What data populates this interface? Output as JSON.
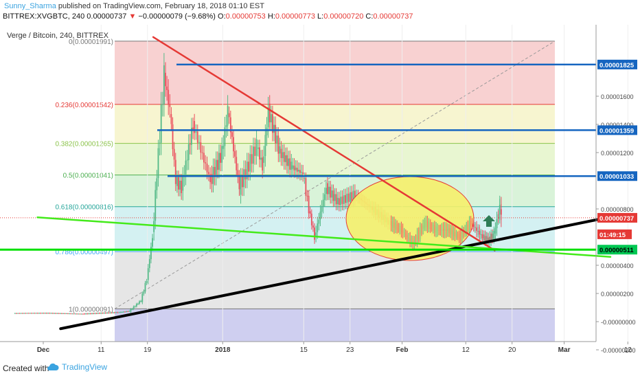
{
  "header": {
    "author": "Sunny_Sharma",
    "published": "published on TradingView.com, February 18, 2018 01:10 EST",
    "symbol": "BITTREX:XVGBTC, 240",
    "last": "0.00000737",
    "change": "−0.00000079 (−9.68%)",
    "o_label": "O:",
    "o_value": "0.00000753",
    "h_label": "H:",
    "h_value": "0.00000773",
    "l_label": "L:",
    "l_value": "0.00000720",
    "c_label": "C:",
    "c_value": "0.00000737"
  },
  "footer": {
    "created": "Created with",
    "brand": "TradingView"
  },
  "chart_data": {
    "type": "candlestick",
    "title": "Verge / Bitcoin, 240, BITTREX",
    "x_ticks": [
      "Dec",
      "11",
      "19",
      "2018",
      "15",
      "23",
      "Feb",
      "12",
      "20",
      "Mar",
      "12"
    ],
    "y_ticks": [
      "0.00001600",
      "0.00001400",
      "0.00001200",
      "0.00000800",
      "0.00000400",
      "0.00000200",
      "-0.00000000",
      "-0.00000200"
    ],
    "ylim": [
      -2.5e-06,
      2.1e-05
    ],
    "fib_levels": [
      {
        "ratio": "0",
        "value": 1.991e-05,
        "label": "0(0.00001991)",
        "color": "#777777"
      },
      {
        "ratio": "0.236",
        "value": 1.542e-05,
        "label": "0.236(0.00001542)",
        "color": "#e53935"
      },
      {
        "ratio": "0.382",
        "value": 1.265e-05,
        "label": "0.382(0.00001265)",
        "color": "#8bc34a"
      },
      {
        "ratio": "0.5",
        "value": 1.041e-05,
        "label": "0.5(0.00001041)",
        "color": "#4caf50"
      },
      {
        "ratio": "0.618",
        "value": 8.16e-06,
        "label": "0.618(0.00000816)",
        "color": "#26a69a"
      },
      {
        "ratio": "0.786",
        "value": 4.97e-06,
        "label": "0.786(0.00000497)",
        "color": "#42a5f5"
      },
      {
        "ratio": "1",
        "value": 9.1e-07,
        "label": "1(0.00000091)",
        "color": "#777777"
      }
    ],
    "price_labels": [
      {
        "text": "0.00001825",
        "value": 1.825e-05,
        "color": "#1565c0"
      },
      {
        "text": "0.00001359",
        "value": 1.359e-05,
        "color": "#1565c0"
      },
      {
        "text": "0.00001033",
        "value": 1.033e-05,
        "color": "#1565c0"
      },
      {
        "text": "0.00000737",
        "value": 7.37e-06,
        "color": "#e53935"
      },
      {
        "text": "01:49:15",
        "value": 6.2e-06,
        "color": "#e53935"
      },
      {
        "text": "0.00000511",
        "value": 5.11e-06,
        "color": "#00c853"
      }
    ],
    "last_price": 7.37e-06,
    "series": [
      {
        "name": "XVGBTC",
        "x": [
          "2017-11-26",
          "2017-12-02",
          "2017-12-08",
          "2017-12-14",
          "2017-12-16",
          "2017-12-18",
          "2017-12-19",
          "2017-12-20",
          "2017-12-21",
          "2017-12-22",
          "2017-12-23",
          "2017-12-24",
          "2017-12-25",
          "2017-12-27",
          "2017-12-30",
          "2018-01-01",
          "2018-01-02",
          "2018-01-04",
          "2018-01-07",
          "2018-01-08",
          "2018-01-09",
          "2018-01-11",
          "2018-01-13",
          "2018-01-15",
          "2018-01-16",
          "2018-01-17",
          "2018-01-19",
          "2018-01-21",
          "2018-01-24",
          "2018-01-27",
          "2018-01-30",
          "2018-02-01",
          "2018-02-03",
          "2018-02-05",
          "2018-02-07",
          "2018-02-09",
          "2018-02-11",
          "2018-02-13",
          "2018-02-15",
          "2018-02-16",
          "2018-02-17",
          "2018-02-18"
        ],
        "values": [
          6e-07,
          5.5e-07,
          6.5e-07,
          7.5e-07,
          1.5e-06,
          3e-06,
          6e-06,
          1.2e-05,
          1.75e-05,
          1.5e-05,
          1e-05,
          9.5e-06,
          1.4e-05,
          1e-05,
          1.2e-05,
          1.5e-05,
          9.5e-06,
          1.25e-05,
          1.1e-05,
          1.5e-05,
          1.2e-05,
          1.1e-05,
          1.05e-05,
          8e-06,
          6e-06,
          9.5e-06,
          8.5e-06,
          9e-06,
          8e-06,
          7e-06,
          6.5e-06,
          5.5e-06,
          7e-06,
          6.5e-06,
          6.5e-06,
          6e-06,
          7e-06,
          6e-06,
          5.8e-06,
          6.2e-06,
          8.2e-06,
          7.37e-06
        ]
      }
    ],
    "drawings": [
      {
        "name": "red trendline",
        "color": "#e53935",
        "points": [
          [
            "2017-12-20",
            2.02e-05
          ],
          [
            "2018-02-17",
            5.05e-06
          ]
        ]
      },
      {
        "name": "black trendline",
        "color": "#000000",
        "points": [
          [
            "2017-12-04",
            -5e-07
          ],
          [
            "2018-03-11",
            7.6e-06
          ]
        ]
      },
      {
        "name": "green trendline",
        "color": "#43ea1a",
        "points": [
          [
            "2017-11-30",
            7.4e-06
          ],
          [
            "2018-03-09",
            4.6e-06
          ]
        ]
      },
      {
        "name": "green horizontal",
        "color": "#00e000",
        "value": 5.11e-06
      },
      {
        "name": "blue horizontal 1",
        "color": "#1565c0",
        "value": 1.825e-05
      },
      {
        "name": "blue horizontal 2",
        "color": "#1565c0",
        "value": 1.359e-05
      },
      {
        "name": "blue horizontal 3",
        "color": "#1565c0",
        "value": 1.033e-05
      }
    ],
    "annotations": [
      "yellow ellipse around Feb consolidation",
      "green up arrow"
    ]
  }
}
